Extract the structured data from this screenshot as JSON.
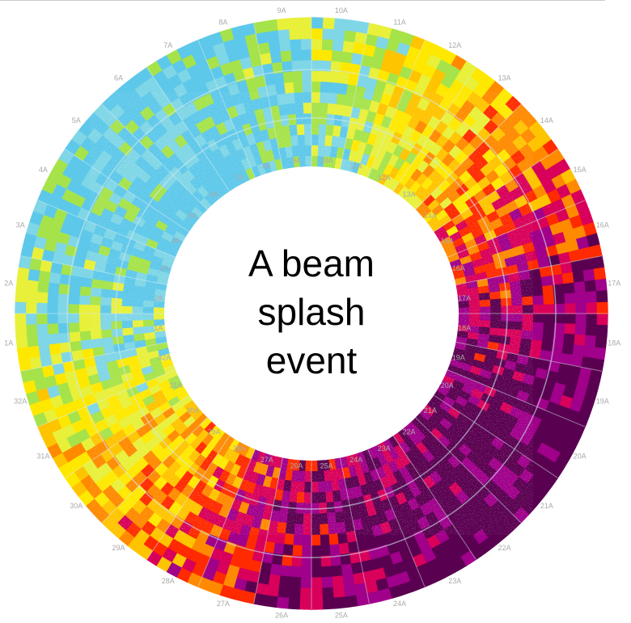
{
  "caption": [
    "A beam",
    "splash",
    "event"
  ],
  "outer_labels": [
    "1A",
    "2A",
    "3A",
    "4A",
    "5A",
    "6A",
    "7A",
    "8A",
    "9A",
    "10A",
    "11A",
    "12A",
    "13A",
    "14A",
    "15A",
    "16A",
    "17A",
    "18A",
    "19A",
    "20A",
    "21A",
    "22A",
    "23A",
    "24A",
    "25A",
    "26A",
    "27A",
    "28A",
    "29A",
    "30A",
    "31A",
    "32A"
  ],
  "inner_labels": [
    "1A",
    "2A",
    "3A",
    "4A",
    "5A",
    "6A",
    "7A",
    "8A",
    "9A",
    "10A",
    "11A",
    "12A",
    "13A",
    "14A",
    "15A",
    "16A",
    "17A",
    "18A",
    "19A",
    "20A",
    "21A",
    "22A",
    "23A",
    "24A",
    "25A",
    "26A",
    "27A",
    "28A",
    "29A",
    "30A",
    "31A",
    "32A"
  ]
}
